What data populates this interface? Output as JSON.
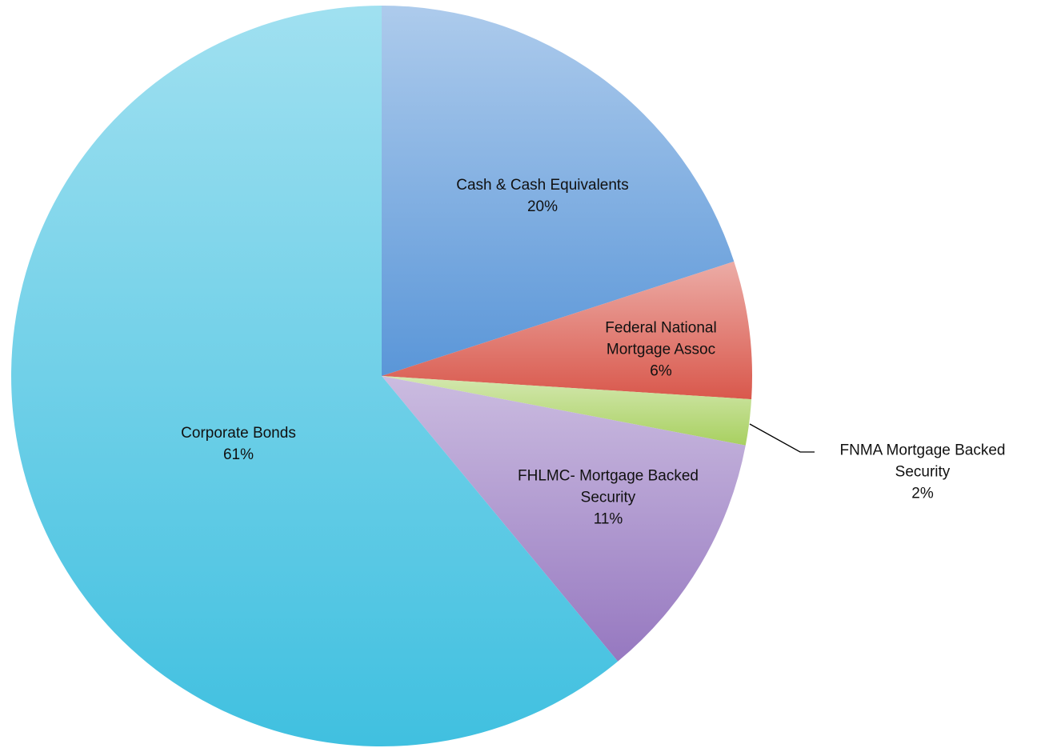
{
  "chart_data": {
    "type": "pie",
    "categories": [
      "Cash & Cash Equivalents",
      "Federal National Mortgage Assoc",
      "FNMA Mortgage Backed Security",
      "FHLMC- Mortgage Backed Security",
      "Corporate Bonds"
    ],
    "values": [
      20,
      6,
      2,
      11,
      61
    ],
    "value_labels": [
      "20%",
      "6%",
      "2%",
      "11%",
      "61%"
    ],
    "colors": [
      "#5a96d8",
      "#d9584c",
      "#a8d060",
      "#9678c0",
      "#40c0e0"
    ]
  }
}
